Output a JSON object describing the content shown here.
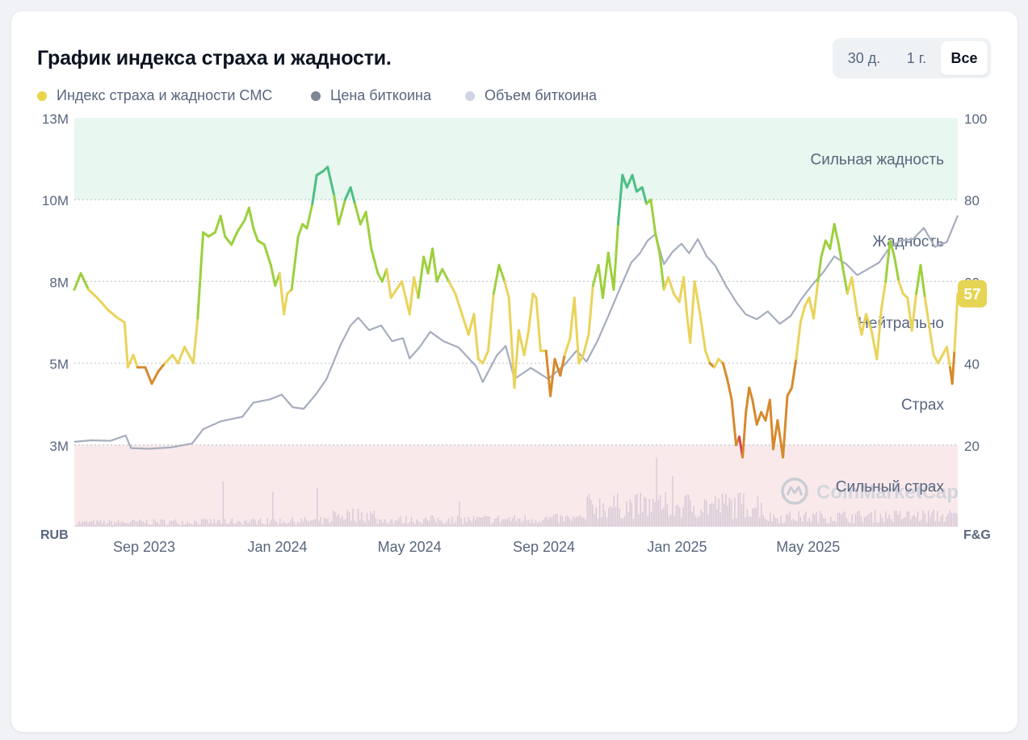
{
  "header": {
    "title": "График индекса страха и жадности.",
    "range_tabs": [
      {
        "label": "30 д.",
        "active": false
      },
      {
        "label": "1 г.",
        "active": false
      },
      {
        "label": "Все",
        "active": true
      }
    ]
  },
  "legend": [
    {
      "label": "Индекс страха и жадности CMC",
      "color": "#e9d44a"
    },
    {
      "label": "Цена биткоина",
      "color": "#7d8596"
    },
    {
      "label": "Объем биткоина",
      "color": "#cfd4e2"
    }
  ],
  "colors": {
    "extreme_greed_band": "#e8f7ef",
    "extreme_fear_band": "#fae9eb",
    "gridline": "#c7ccd6",
    "price_line": "#a6adbe",
    "volume_bars": "#d5c9d6",
    "fg_extreme_fear": "#d94452",
    "fg_fear": "#d68a2c",
    "fg_neutral": "#ead35a",
    "fg_greed": "#9cd03c",
    "fg_extreme_greed": "#4cbf84",
    "current_badge": "#e6d454"
  },
  "watermark": "CoinMarketCap",
  "chart_data": {
    "type": "line",
    "left_axis_label": "RUB",
    "right_axis_label": "F&G",
    "left_ticks": [
      "13M",
      "10M",
      "8M",
      "5M",
      "3M"
    ],
    "right_ticks": [
      "100",
      "80",
      "60",
      "40",
      "20"
    ],
    "right_ylim": [
      0,
      100
    ],
    "left_ylim": [
      0,
      13000000
    ],
    "x_ticks": [
      "Sep 2023",
      "Jan 2024",
      "May 2024",
      "Sep 2024",
      "Jan 2025",
      "May 2025"
    ],
    "x_tick_dates": [
      "2023-09-01",
      "2024-01-01",
      "2024-05-01",
      "2024-09-01",
      "2025-01-01",
      "2025-05-01"
    ],
    "x_range": [
      "2023-06-29",
      "2025-09-15"
    ],
    "zones": [
      {
        "label": "Сильная жадность",
        "from": 80,
        "to": 100
      },
      {
        "label": "Жадность",
        "from": 60,
        "to": 80
      },
      {
        "label": "Нейтрально",
        "from": 40,
        "to": 60
      },
      {
        "label": "Страх",
        "from": 20,
        "to": 40
      },
      {
        "label": "Сильный страх",
        "from": 0,
        "to": 20
      }
    ],
    "current_value": "57",
    "series": [
      {
        "name": "Индекс страха и жадности CMC",
        "axis": "right",
        "points": [
          [
            "2023-06-29",
            58
          ],
          [
            "2023-07-05",
            62
          ],
          [
            "2023-07-12",
            58
          ],
          [
            "2023-07-20",
            56
          ],
          [
            "2023-07-30",
            53
          ],
          [
            "2023-08-08",
            51
          ],
          [
            "2023-08-14",
            50
          ],
          [
            "2023-08-17",
            39
          ],
          [
            "2023-08-22",
            42
          ],
          [
            "2023-08-26",
            39
          ],
          [
            "2023-09-02",
            39
          ],
          [
            "2023-09-08",
            35
          ],
          [
            "2023-09-14",
            38
          ],
          [
            "2023-09-20",
            40
          ],
          [
            "2023-09-27",
            42
          ],
          [
            "2023-10-02",
            40
          ],
          [
            "2023-10-08",
            44
          ],
          [
            "2023-10-12",
            42
          ],
          [
            "2023-10-16",
            40
          ],
          [
            "2023-10-20",
            51
          ],
          [
            "2023-10-25",
            72
          ],
          [
            "2023-10-30",
            71
          ],
          [
            "2023-11-05",
            72
          ],
          [
            "2023-11-10",
            76
          ],
          [
            "2023-11-14",
            71
          ],
          [
            "2023-11-20",
            69
          ],
          [
            "2023-11-25",
            72
          ],
          [
            "2023-12-02",
            75
          ],
          [
            "2023-12-06",
            78
          ],
          [
            "2023-12-10",
            73
          ],
          [
            "2023-12-14",
            70
          ],
          [
            "2023-12-20",
            69
          ],
          [
            "2023-12-26",
            64
          ],
          [
            "2023-12-30",
            59
          ],
          [
            "2024-01-03",
            62
          ],
          [
            "2024-01-07",
            52
          ],
          [
            "2024-01-10",
            57
          ],
          [
            "2024-01-14",
            58
          ],
          [
            "2024-01-20",
            71
          ],
          [
            "2024-01-24",
            74
          ],
          [
            "2024-01-28",
            73
          ],
          [
            "2024-02-02",
            79
          ],
          [
            "2024-02-06",
            86
          ],
          [
            "2024-02-12",
            87
          ],
          [
            "2024-02-16",
            88
          ],
          [
            "2024-02-22",
            81
          ],
          [
            "2024-02-26",
            74
          ],
          [
            "2024-03-03",
            80
          ],
          [
            "2024-03-08",
            83
          ],
          [
            "2024-03-12",
            79
          ],
          [
            "2024-03-17",
            74
          ],
          [
            "2024-03-22",
            77
          ],
          [
            "2024-03-27",
            68
          ],
          [
            "2024-04-02",
            62
          ],
          [
            "2024-04-06",
            60
          ],
          [
            "2024-04-10",
            63
          ],
          [
            "2024-04-14",
            56
          ],
          [
            "2024-04-19",
            58
          ],
          [
            "2024-04-24",
            60
          ],
          [
            "2024-05-01",
            52
          ],
          [
            "2024-05-05",
            61
          ],
          [
            "2024-05-09",
            56
          ],
          [
            "2024-05-14",
            66
          ],
          [
            "2024-05-18",
            62
          ],
          [
            "2024-05-22",
            68
          ],
          [
            "2024-05-26",
            60
          ],
          [
            "2024-05-31",
            63
          ],
          [
            "2024-06-06",
            60
          ],
          [
            "2024-06-12",
            57
          ],
          [
            "2024-06-18",
            52
          ],
          [
            "2024-06-24",
            47
          ],
          [
            "2024-06-29",
            52
          ],
          [
            "2024-07-03",
            41
          ],
          [
            "2024-07-07",
            40
          ],
          [
            "2024-07-12",
            43
          ],
          [
            "2024-07-17",
            57
          ],
          [
            "2024-07-22",
            64
          ],
          [
            "2024-07-27",
            60
          ],
          [
            "2024-07-31",
            56
          ],
          [
            "2024-08-05",
            34
          ],
          [
            "2024-08-09",
            48
          ],
          [
            "2024-08-14",
            42
          ],
          [
            "2024-08-18",
            48
          ],
          [
            "2024-08-22",
            57
          ],
          [
            "2024-08-25",
            56
          ],
          [
            "2024-08-29",
            43
          ],
          [
            "2024-09-03",
            43
          ],
          [
            "2024-09-07",
            32
          ],
          [
            "2024-09-11",
            41
          ],
          [
            "2024-09-16",
            37
          ],
          [
            "2024-09-20",
            42
          ],
          [
            "2024-09-25",
            46
          ],
          [
            "2024-09-29",
            56
          ],
          [
            "2024-10-03",
            40
          ],
          [
            "2024-10-07",
            42
          ],
          [
            "2024-10-12",
            47
          ],
          [
            "2024-10-16",
            59
          ],
          [
            "2024-10-21",
            64
          ],
          [
            "2024-10-25",
            56
          ],
          [
            "2024-10-30",
            67
          ],
          [
            "2024-11-04",
            58
          ],
          [
            "2024-11-08",
            74
          ],
          [
            "2024-11-12",
            86
          ],
          [
            "2024-11-16",
            83
          ],
          [
            "2024-11-21",
            86
          ],
          [
            "2024-11-25",
            82
          ],
          [
            "2024-11-30",
            83
          ],
          [
            "2024-12-04",
            79
          ],
          [
            "2024-12-08",
            80
          ],
          [
            "2024-12-12",
            72
          ],
          [
            "2024-12-16",
            67
          ],
          [
            "2024-12-20",
            58
          ],
          [
            "2024-12-24",
            61
          ],
          [
            "2024-12-29",
            57
          ],
          [
            "2025-01-03",
            55
          ],
          [
            "2025-01-07",
            61
          ],
          [
            "2025-01-10",
            52
          ],
          [
            "2025-01-13",
            45
          ],
          [
            "2025-01-17",
            60
          ],
          [
            "2025-01-22",
            52
          ],
          [
            "2025-01-27",
            43
          ],
          [
            "2025-01-31",
            40
          ],
          [
            "2025-02-04",
            39
          ],
          [
            "2025-02-08",
            41
          ],
          [
            "2025-02-12",
            40
          ],
          [
            "2025-02-16",
            36
          ],
          [
            "2025-02-20",
            31
          ],
          [
            "2025-02-24",
            20
          ],
          [
            "2025-02-27",
            22
          ],
          [
            "2025-03-02",
            17
          ],
          [
            "2025-03-05",
            28
          ],
          [
            "2025-03-08",
            34
          ],
          [
            "2025-03-11",
            31
          ],
          [
            "2025-03-15",
            25
          ],
          [
            "2025-03-19",
            28
          ],
          [
            "2025-03-23",
            26
          ],
          [
            "2025-03-27",
            31
          ],
          [
            "2025-03-30",
            19
          ],
          [
            "2025-04-03",
            26
          ],
          [
            "2025-04-08",
            17
          ],
          [
            "2025-04-12",
            32
          ],
          [
            "2025-04-16",
            34
          ],
          [
            "2025-04-20",
            41
          ],
          [
            "2025-04-24",
            50
          ],
          [
            "2025-04-28",
            54
          ],
          [
            "2025-05-02",
            56
          ],
          [
            "2025-05-06",
            51
          ],
          [
            "2025-05-10",
            60
          ],
          [
            "2025-05-13",
            66
          ],
          [
            "2025-05-17",
            70
          ],
          [
            "2025-05-21",
            68
          ],
          [
            "2025-05-25",
            74
          ],
          [
            "2025-05-29",
            69
          ],
          [
            "2025-06-02",
            63
          ],
          [
            "2025-06-06",
            57
          ],
          [
            "2025-06-10",
            61
          ],
          [
            "2025-06-15",
            52
          ],
          [
            "2025-06-19",
            47
          ],
          [
            "2025-06-23",
            52
          ],
          [
            "2025-06-28",
            48
          ],
          [
            "2025-07-03",
            41
          ],
          [
            "2025-07-07",
            53
          ],
          [
            "2025-07-11",
            60
          ],
          [
            "2025-07-15",
            70
          ],
          [
            "2025-07-19",
            66
          ],
          [
            "2025-07-23",
            60
          ],
          [
            "2025-07-27",
            57
          ],
          [
            "2025-07-31",
            56
          ],
          [
            "2025-08-04",
            48
          ],
          [
            "2025-08-08",
            57
          ],
          [
            "2025-08-12",
            64
          ],
          [
            "2025-08-16",
            56
          ],
          [
            "2025-08-20",
            49
          ],
          [
            "2025-08-24",
            42
          ],
          [
            "2025-08-28",
            40
          ],
          [
            "2025-09-01",
            42
          ],
          [
            "2025-09-05",
            44
          ],
          [
            "2025-09-08",
            39
          ],
          [
            "2025-09-10",
            35
          ],
          [
            "2025-09-12",
            43
          ],
          [
            "2025-09-15",
            57
          ]
        ]
      },
      {
        "name": "Цена биткоина",
        "axis": "left",
        "points": [
          [
            "2023-06-29",
            2700000
          ],
          [
            "2023-07-15",
            2750000
          ],
          [
            "2023-08-01",
            2730000
          ],
          [
            "2023-08-15",
            2900000
          ],
          [
            "2023-08-20",
            2500000
          ],
          [
            "2023-09-05",
            2480000
          ],
          [
            "2023-09-25",
            2520000
          ],
          [
            "2023-10-15",
            2650000
          ],
          [
            "2023-10-25",
            3100000
          ],
          [
            "2023-11-10",
            3350000
          ],
          [
            "2023-11-30",
            3500000
          ],
          [
            "2023-12-10",
            3950000
          ],
          [
            "2023-12-25",
            4050000
          ],
          [
            "2024-01-05",
            4200000
          ],
          [
            "2024-01-15",
            3800000
          ],
          [
            "2024-01-25",
            3750000
          ],
          [
            "2024-02-05",
            4200000
          ],
          [
            "2024-02-15",
            4700000
          ],
          [
            "2024-02-28",
            5800000
          ],
          [
            "2024-03-08",
            6400000
          ],
          [
            "2024-03-15",
            6650000
          ],
          [
            "2024-03-25",
            6250000
          ],
          [
            "2024-04-05",
            6400000
          ],
          [
            "2024-04-15",
            5900000
          ],
          [
            "2024-04-25",
            6000000
          ],
          [
            "2024-05-01",
            5350000
          ],
          [
            "2024-05-10",
            5700000
          ],
          [
            "2024-05-20",
            6200000
          ],
          [
            "2024-06-01",
            5900000
          ],
          [
            "2024-06-15",
            5700000
          ],
          [
            "2024-07-01",
            5100000
          ],
          [
            "2024-07-07",
            4600000
          ],
          [
            "2024-07-20",
            5450000
          ],
          [
            "2024-07-28",
            5750000
          ],
          [
            "2024-08-05",
            4700000
          ],
          [
            "2024-08-20",
            5050000
          ],
          [
            "2024-09-05",
            4700000
          ],
          [
            "2024-09-20",
            5150000
          ],
          [
            "2024-10-01",
            5600000
          ],
          [
            "2024-10-10",
            5250000
          ],
          [
            "2024-10-20",
            5900000
          ],
          [
            "2024-10-30",
            6700000
          ],
          [
            "2024-11-10",
            7600000
          ],
          [
            "2024-11-20",
            8400000
          ],
          [
            "2024-11-28",
            8700000
          ],
          [
            "2024-12-05",
            9100000
          ],
          [
            "2024-12-12",
            9300000
          ],
          [
            "2024-12-20",
            8350000
          ],
          [
            "2024-12-28",
            8750000
          ],
          [
            "2025-01-05",
            9000000
          ],
          [
            "2025-01-12",
            8700000
          ],
          [
            "2025-01-20",
            9150000
          ],
          [
            "2025-01-28",
            8600000
          ],
          [
            "2025-02-05",
            8300000
          ],
          [
            "2025-02-15",
            7650000
          ],
          [
            "2025-02-25",
            7100000
          ],
          [
            "2025-03-05",
            6750000
          ],
          [
            "2025-03-15",
            6600000
          ],
          [
            "2025-03-25",
            6850000
          ],
          [
            "2025-04-05",
            6450000
          ],
          [
            "2025-04-15",
            6700000
          ],
          [
            "2025-04-25",
            7250000
          ],
          [
            "2025-05-05",
            7700000
          ],
          [
            "2025-05-15",
            8100000
          ],
          [
            "2025-05-25",
            8600000
          ],
          [
            "2025-06-05",
            8350000
          ],
          [
            "2025-06-15",
            8000000
          ],
          [
            "2025-06-25",
            8200000
          ],
          [
            "2025-07-05",
            8400000
          ],
          [
            "2025-07-15",
            8900000
          ],
          [
            "2025-07-25",
            9100000
          ],
          [
            "2025-08-05",
            9150000
          ],
          [
            "2025-08-15",
            9500000
          ],
          [
            "2025-08-25",
            8900000
          ],
          [
            "2025-09-05",
            9050000
          ],
          [
            "2025-09-15",
            9900000
          ]
        ]
      }
    ]
  }
}
